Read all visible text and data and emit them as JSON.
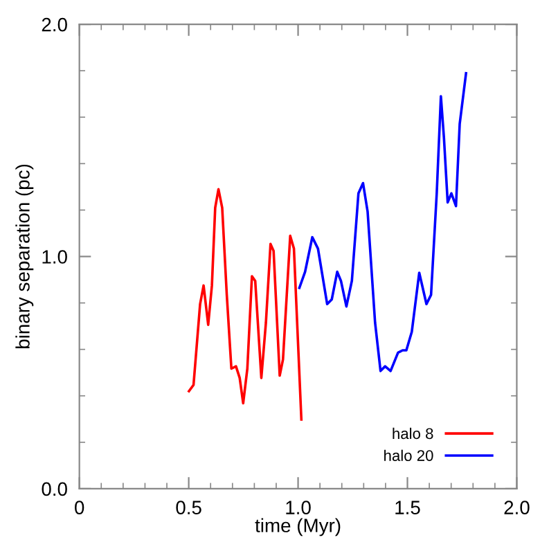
{
  "chart_data": {
    "type": "line",
    "xlabel": "time (Myr)",
    "ylabel": "binary separation (pc)",
    "xlim": [
      0,
      2.0
    ],
    "ylim": [
      0.0,
      2.0
    ],
    "xticks": [
      0,
      0.5,
      {
        "value": 1,
        "label": "1.0"
      },
      1.5,
      {
        "value": 2,
        "label": "2.0"
      }
    ],
    "yticks": [
      {
        "value": 0,
        "label": "0.0"
      },
      {
        "value": 1,
        "label": "1.0"
      },
      {
        "value": 2,
        "label": "2.0"
      }
    ],
    "legend": "bottom right",
    "grid": false,
    "series": [
      {
        "name": "halo 8",
        "color": "#ff0000",
        "x": [
          0.501,
          0.522,
          0.552,
          0.568,
          0.589,
          0.606,
          0.621,
          0.636,
          0.653,
          0.674,
          0.695,
          0.716,
          0.733,
          0.749,
          0.768,
          0.789,
          0.804,
          0.832,
          0.853,
          0.874,
          0.888,
          0.916,
          0.931,
          0.964,
          0.981,
          1.015
        ],
        "values": [
          0.42,
          0.447,
          0.795,
          0.875,
          0.706,
          0.875,
          1.21,
          1.29,
          1.21,
          0.835,
          0.517,
          0.527,
          0.477,
          0.368,
          0.517,
          0.915,
          0.895,
          0.477,
          0.716,
          1.054,
          1.024,
          0.487,
          0.557,
          1.089,
          1.034,
          0.298
        ]
      },
      {
        "name": "halo 20",
        "color": "#0000ff",
        "x": [
          1.006,
          1.032,
          1.065,
          1.091,
          1.133,
          1.154,
          1.179,
          1.196,
          1.221,
          1.246,
          1.276,
          1.297,
          1.318,
          1.352,
          1.377,
          1.398,
          1.423,
          1.457,
          1.478,
          1.495,
          1.52,
          1.554,
          1.587,
          1.608,
          1.634,
          1.653,
          1.667,
          1.684,
          1.701,
          1.722,
          1.739,
          1.768
        ],
        "values": [
          0.865,
          0.934,
          1.083,
          1.034,
          0.795,
          0.815,
          0.934,
          0.895,
          0.785,
          0.895,
          1.272,
          1.316,
          1.193,
          0.716,
          0.507,
          0.527,
          0.507,
          0.586,
          0.596,
          0.596,
          0.676,
          0.93,
          0.795,
          0.835,
          1.272,
          1.69,
          1.511,
          1.233,
          1.272,
          1.217,
          1.571,
          1.789
        ]
      }
    ]
  }
}
